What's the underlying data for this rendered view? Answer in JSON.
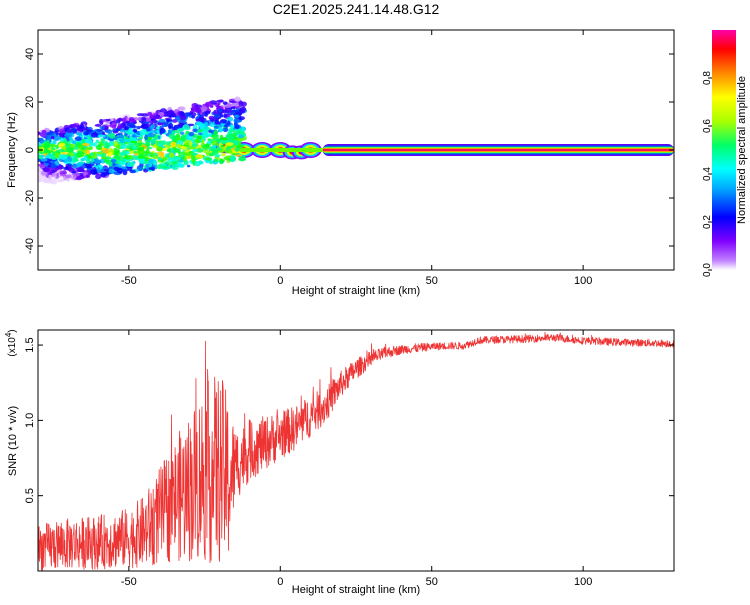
{
  "title": "C2E1.2025.241.14.48.G12",
  "chart_data": [
    {
      "type": "heatmap",
      "name": "spectrogram",
      "xlabel": "Height of straight line (km)",
      "ylabel": "Frequency (Hz)",
      "xlim": [
        -80,
        130
      ],
      "ylim": [
        -50,
        50
      ],
      "xticks": [
        -50,
        0,
        50,
        100
      ],
      "xtick_labels": [
        "-50",
        "0",
        "50",
        "100"
      ],
      "yticks": [
        -40,
        -20,
        0,
        20,
        40
      ],
      "ytick_labels": [
        "-40",
        "-20",
        "0",
        "20",
        "40"
      ],
      "colorbar": {
        "label": "Normalized spectral amplitude",
        "range": [
          0,
          1
        ],
        "ticks": [
          0,
          0.2,
          0.4,
          0.6,
          0.8
        ],
        "tick_labels": [
          "0.0",
          "0.2",
          "0.4",
          "0.6",
          "0.8"
        ],
        "colormap": [
          "#ffffff",
          "#8000ff",
          "#0000ff",
          "#00ffff",
          "#00ff00",
          "#ffff00",
          "#ff8000",
          "#ff0000",
          "#ff00aa"
        ]
      },
      "features": {
        "broadband_scatter_range_km": [
          -80,
          -12
        ],
        "broadband_fmin_hz": [
          -14,
          -4
        ],
        "broadband_fmax_hz": [
          8,
          22
        ],
        "carrier_line_from_km": 14,
        "carrier_line_to_km": 130,
        "carrier_freq_hz": 0,
        "carrier_amplitude": 0.95
      }
    },
    {
      "type": "line",
      "name": "snr",
      "xlabel": "Height of straight line (km)",
      "ylabel": "SNR (10 * v/v)",
      "y_multiplier_label": "(x10",
      "y_multiplier_exp": "4",
      "y_multiplier_close": ")",
      "xlim": [
        -80,
        130
      ],
      "ylim": [
        0,
        16000
      ],
      "xticks": [
        -50,
        0,
        50,
        100
      ],
      "xtick_labels": [
        "-50",
        "0",
        "50",
        "100"
      ],
      "yticks": [
        5000,
        10000,
        15000
      ],
      "ytick_labels": [
        "0.5",
        "1.0",
        "1.5"
      ],
      "color": "#ee3333",
      "series": [
        {
          "name": "SNR",
          "x": [
            -80,
            -70,
            -60,
            -50,
            -45,
            -40,
            -35,
            -30,
            -25,
            -20,
            -17,
            -15,
            -10,
            -5,
            0,
            5,
            10,
            15,
            20,
            25,
            30,
            35,
            40,
            45,
            50,
            55,
            60,
            63,
            65,
            70,
            80,
            90,
            100,
            110,
            120,
            130
          ],
          "y": [
            1500,
            1800,
            1900,
            2200,
            2600,
            3600,
            4700,
            5500,
            6500,
            6800,
            6000,
            7000,
            8000,
            8500,
            9000,
            9500,
            10300,
            11000,
            12400,
            13400,
            14100,
            14500,
            14700,
            14800,
            14900,
            14950,
            14950,
            15100,
            15300,
            15350,
            15400,
            15500,
            15300,
            15200,
            15150,
            15100
          ],
          "noise": [
            1600,
            1700,
            1800,
            2000,
            2400,
            3200,
            4000,
            5000,
            6000,
            6500,
            5500,
            2500,
            2000,
            1800,
            1600,
            1500,
            1400,
            1200,
            900,
            700,
            500,
            400,
            300,
            300,
            250,
            250,
            250,
            250,
            250,
            250,
            250,
            250,
            250,
            250,
            250,
            250
          ]
        }
      ]
    }
  ]
}
